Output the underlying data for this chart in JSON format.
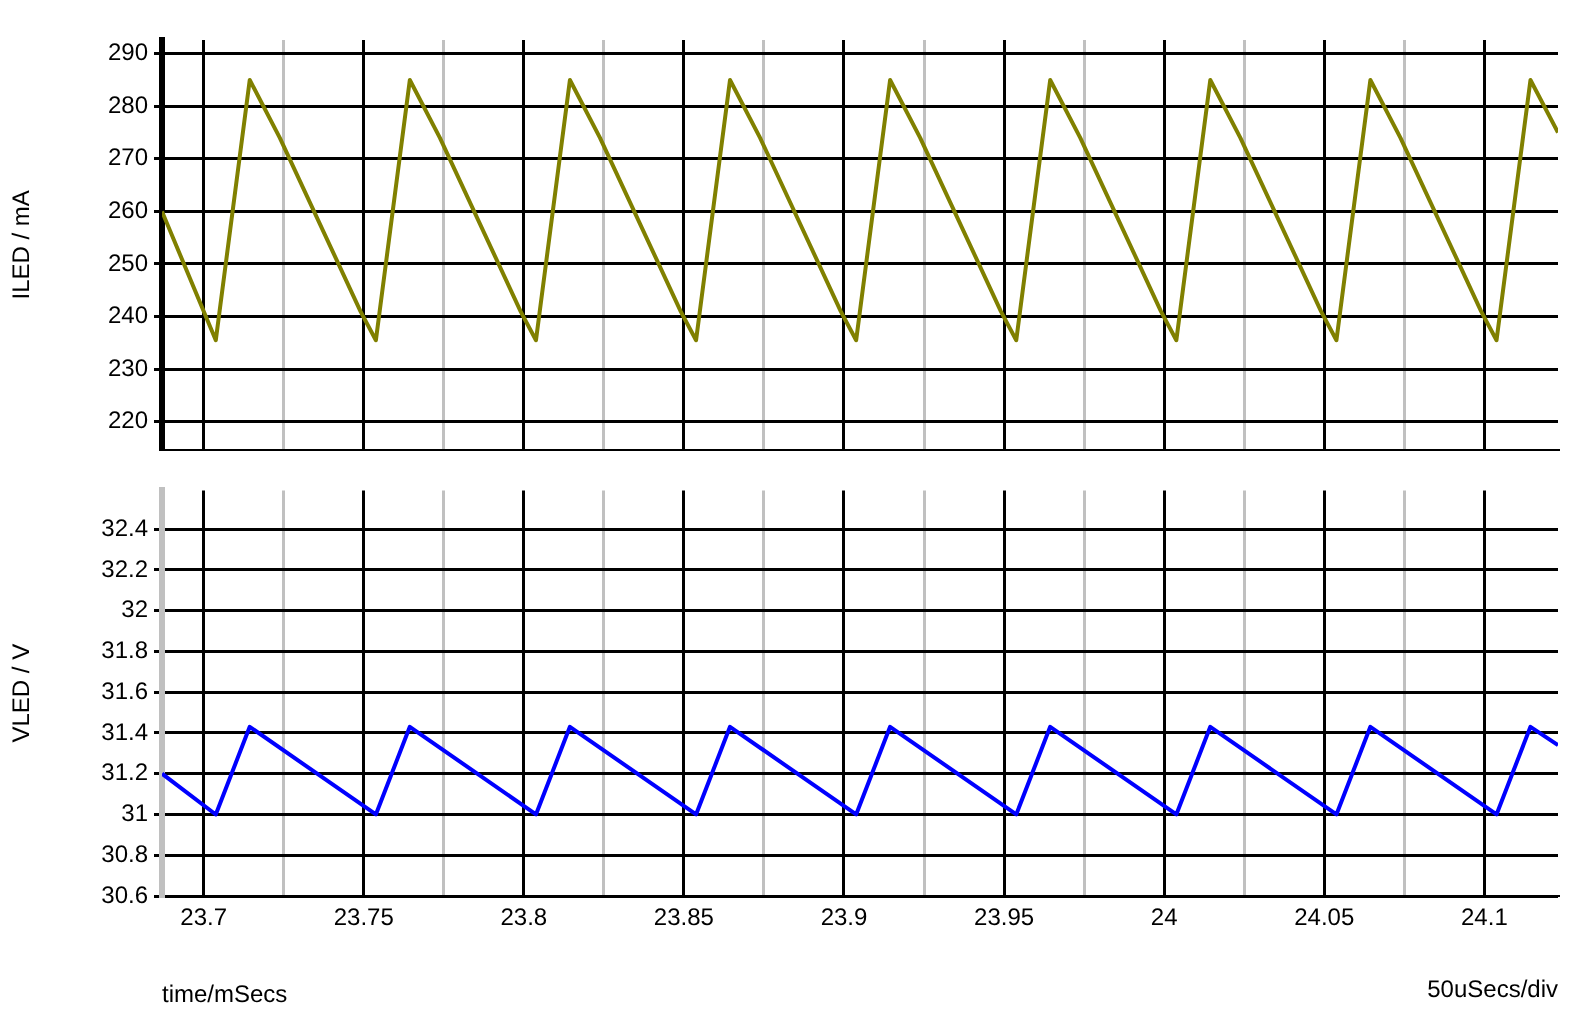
{
  "chart_data": [
    {
      "type": "line",
      "ylabel": "ILED / mA",
      "xlim": [
        23.687,
        24.123
      ],
      "ylim": [
        214.7,
        292.6
      ],
      "grid": true,
      "tick_labels": "y",
      "legend": false,
      "marker": "none",
      "xticks": [
        23.7,
        {
          "value": 23.725,
          "label": null
        },
        23.75,
        {
          "value": 23.775,
          "label": null
        },
        23.8,
        {
          "value": 23.825,
          "label": null
        },
        23.85,
        {
          "value": 23.875,
          "label": null
        },
        23.9,
        {
          "value": 23.925,
          "label": null
        },
        23.95,
        {
          "value": 23.975,
          "label": null
        },
        24,
        {
          "value": 24.025,
          "label": null
        },
        24.05,
        {
          "value": 24.075,
          "label": null
        },
        24.1
      ],
      "yticks": [
        220,
        230,
        240,
        250,
        260,
        270,
        280,
        290
      ],
      "series": [
        {
          "color": "#808000",
          "x": [
            23.687,
            23.7038,
            23.7144,
            23.7238,
            23.749,
            23.7538,
            23.7644,
            23.7738,
            23.799,
            23.8038,
            23.8144,
            23.8238,
            23.849,
            23.8538,
            23.8644,
            23.8738,
            23.899,
            23.9038,
            23.9144,
            23.9238,
            23.949,
            23.9538,
            23.9644,
            23.9738,
            23.999,
            24.0038,
            24.0144,
            24.0238,
            24.049,
            24.0538,
            24.0644,
            24.0738,
            24.099,
            24.1038,
            24.1144,
            24.123
          ],
          "values": [
            260,
            235.5,
            285,
            274,
            241,
            235.5,
            285,
            274,
            241,
            235.5,
            285,
            274,
            241,
            235.5,
            285,
            274,
            241,
            235.5,
            285,
            274,
            241,
            235.5,
            285,
            274,
            241,
            235.5,
            285,
            274,
            241,
            235.5,
            285,
            274,
            241,
            235.5,
            285,
            275
          ]
        }
      ]
    },
    {
      "type": "line",
      "xlabel": "time/mSecs",
      "ylabel": "VLED / V",
      "xlim": [
        23.687,
        24.123
      ],
      "ylim": [
        30.6,
        32.59
      ],
      "grid": true,
      "legend": false,
      "marker": "none",
      "annotations": [
        "50uSecs/div"
      ],
      "xticks": [
        23.7,
        {
          "value": 23.725,
          "label": null
        },
        23.75,
        {
          "value": 23.775,
          "label": null
        },
        23.8,
        {
          "value": 23.825,
          "label": null
        },
        23.85,
        {
          "value": 23.875,
          "label": null
        },
        23.9,
        {
          "value": 23.925,
          "label": null
        },
        23.95,
        {
          "value": 23.975,
          "label": null
        },
        24,
        {
          "value": 24.025,
          "label": null
        },
        24.05,
        {
          "value": 24.075,
          "label": null
        },
        24.1
      ],
      "yticks": [
        30.6,
        30.8,
        31,
        31.2,
        31.4,
        31.6,
        31.8,
        32,
        32.2,
        32.4
      ],
      "series": [
        {
          "color": "#0000ff",
          "x": [
            23.687,
            23.7038,
            23.7144,
            23.7538,
            23.7644,
            23.8038,
            23.8144,
            23.8538,
            23.8644,
            23.9038,
            23.9144,
            23.9538,
            23.9644,
            24.0038,
            24.0144,
            24.0538,
            24.0644,
            24.1038,
            24.1144,
            24.123
          ],
          "values": [
            31.2,
            31.0,
            31.43,
            31.0,
            31.43,
            31.0,
            31.43,
            31.0,
            31.43,
            31.0,
            31.43,
            31.0,
            31.43,
            31.0,
            31.43,
            31.0,
            31.43,
            31.0,
            31.43,
            31.34
          ]
        }
      ]
    }
  ]
}
